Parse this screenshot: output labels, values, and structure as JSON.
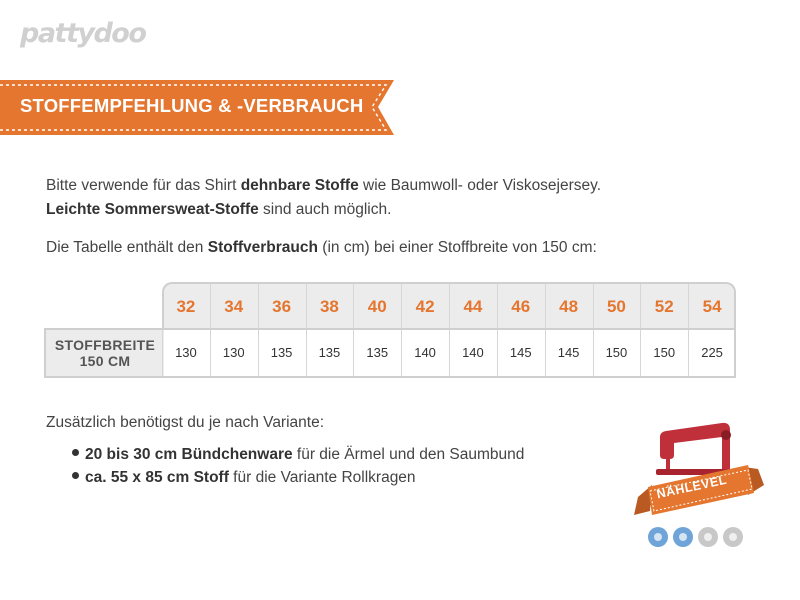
{
  "logo": {
    "text": "pattydoo"
  },
  "banner": {
    "title": "STOFFEMPFEHLUNG & -VERBRAUCH",
    "color": "#e4762f"
  },
  "intro": {
    "line1_pre": "Bitte verwende für das Shirt ",
    "line1_bold": "dehnbare Stoffe",
    "line1_post": " wie Baumwoll- oder Viskosejersey.",
    "line2_bold": "Leichte Sommersweat-Stoffe",
    "line2_post": " sind auch möglich."
  },
  "table_intro": {
    "pre": "Die Tabelle enthält den ",
    "bold": "Stoffverbrauch",
    "post": " (in cm) bei einer  Stoffbreite von 150 cm:"
  },
  "table": {
    "row_label_line1": "STOFFBREITE",
    "row_label_line2": "150 CM",
    "sizes": [
      "32",
      "34",
      "36",
      "38",
      "40",
      "42",
      "44",
      "46",
      "48",
      "50",
      "52",
      "54"
    ],
    "values": [
      "130",
      "130",
      "135",
      "135",
      "135",
      "140",
      "140",
      "145",
      "145",
      "150",
      "150",
      "225"
    ]
  },
  "additional": {
    "heading": "Zusätzlich benötigst du je nach Variante:",
    "items": [
      {
        "bold": "20 bis 30 cm Bündchenware",
        "rest": " für die Ärmel und den Saumbund"
      },
      {
        "bold": "ca. 55  x  85 cm Stoff",
        "rest": " für die Variante Rollkragen"
      }
    ]
  },
  "badge": {
    "label": "NÄHLEVEL",
    "icon": "sewing-machine-icon",
    "level": 2,
    "max_level": 4,
    "colors": {
      "machine": "#c0303a",
      "ribbon": "#e4762f",
      "active_dot": "#6fa4d8",
      "inactive_dot": "#c8c8c8"
    }
  }
}
